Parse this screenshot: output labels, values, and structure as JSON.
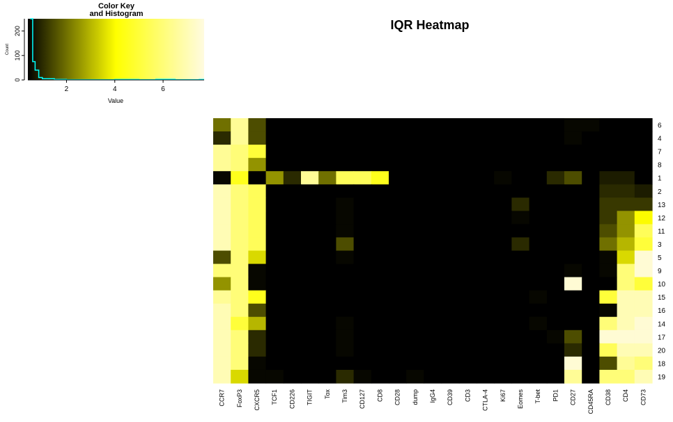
{
  "chart_data": {
    "type": "heatmap",
    "title": "IQR Heatmap",
    "xlabel": "",
    "ylabel": "",
    "columns": [
      "CCR7",
      "FoxP3",
      "CXCR5",
      "TCF1",
      "CD226",
      "TIGIT",
      "Tox",
      "Tim3",
      "CD127",
      "CD8",
      "CD28",
      "dump",
      "IgG4",
      "CD39",
      "CD3",
      "CTLA-4",
      "Ki67",
      "Eomes",
      "T-bet",
      "PD1",
      "CD27",
      "CD45RA",
      "CD38",
      "CD4",
      "CD73"
    ],
    "rows": [
      "6",
      "4",
      "7",
      "8",
      "1",
      "2",
      "13",
      "12",
      "11",
      "3",
      "5",
      "9",
      "10",
      "15",
      "16",
      "14",
      "17",
      "20",
      "18",
      "19"
    ],
    "values": [
      [
        2.0,
        6.5,
        1.5,
        0.1,
        0.1,
        0.1,
        0.1,
        0.3,
        0.1,
        0.1,
        0.1,
        0.3,
        0.1,
        0.1,
        0.1,
        0.1,
        0.1,
        0.1,
        0.1,
        0.2,
        0.5,
        0.5,
        0.2,
        0.1,
        0.1
      ],
      [
        1.0,
        6.5,
        1.5,
        0.1,
        0.1,
        0.1,
        0.1,
        0.3,
        0.1,
        0.1,
        0.1,
        0.3,
        0.1,
        0.1,
        0.1,
        0.1,
        0.1,
        0.1,
        0.1,
        0.1,
        0.5,
        0.4,
        0.1,
        0.2,
        0.1
      ],
      [
        6.5,
        6.0,
        5.0,
        0.1,
        0.1,
        0.1,
        0.1,
        0.3,
        0.1,
        0.1,
        0.1,
        0.3,
        0.1,
        0.1,
        0.1,
        0.1,
        0.1,
        0.2,
        0.1,
        0.1,
        0.4,
        0.3,
        0.4,
        0.2,
        0.1
      ],
      [
        6.5,
        6.0,
        2.5,
        0.1,
        0.1,
        0.1,
        0.1,
        0.3,
        0.1,
        0.1,
        0.1,
        0.3,
        0.1,
        0.1,
        0.1,
        0.1,
        0.1,
        0.1,
        0.1,
        0.1,
        0.3,
        0.3,
        0.2,
        0.1,
        0.1
      ],
      [
        0.5,
        4.5,
        0.1,
        2.5,
        1.0,
        6.5,
        2.0,
        5.5,
        5.5,
        4.5,
        0.1,
        0.3,
        0.1,
        0.2,
        0.1,
        0.2,
        0.5,
        0.1,
        0.1,
        1.0,
        1.5,
        0.2,
        0.8,
        0.8,
        0.3
      ],
      [
        7.0,
        6.0,
        5.5,
        0.1,
        0.1,
        0.1,
        0.1,
        0.3,
        0.1,
        0.1,
        0.1,
        0.3,
        0.1,
        0.1,
        0.1,
        0.1,
        0.1,
        0.3,
        0.1,
        0.1,
        0.1,
        0.1,
        1.0,
        1.0,
        0.8
      ],
      [
        7.0,
        6.0,
        5.5,
        0.1,
        0.1,
        0.1,
        0.1,
        0.5,
        0.1,
        0.1,
        0.1,
        0.3,
        0.1,
        0.1,
        0.1,
        0.1,
        0.1,
        1.0,
        0.3,
        0.1,
        0.1,
        0.3,
        1.2,
        1.2,
        1.2
      ],
      [
        7.0,
        6.0,
        5.5,
        0.1,
        0.1,
        0.1,
        0.1,
        0.5,
        0.1,
        0.1,
        0.1,
        0.3,
        0.1,
        0.1,
        0.1,
        0.1,
        0.1,
        0.5,
        0.3,
        0.1,
        0.1,
        0.3,
        1.2,
        2.5,
        4.0
      ],
      [
        7.0,
        6.0,
        5.5,
        0.1,
        0.1,
        0.1,
        0.2,
        0.5,
        0.1,
        0.1,
        0.1,
        0.3,
        0.1,
        0.1,
        0.1,
        0.1,
        0.1,
        0.3,
        0.3,
        0.1,
        0.1,
        0.3,
        1.5,
        2.5,
        5.5
      ],
      [
        7.0,
        6.0,
        5.5,
        0.1,
        0.1,
        0.1,
        0.4,
        1.5,
        0.1,
        0.1,
        0.1,
        0.3,
        0.1,
        0.1,
        0.1,
        0.1,
        0.1,
        1.0,
        0.3,
        0.1,
        0.1,
        0.2,
        2.0,
        3.0,
        5.0
      ],
      [
        1.5,
        6.0,
        3.5,
        0.1,
        0.1,
        0.1,
        0.1,
        0.5,
        0.1,
        0.1,
        0.1,
        0.3,
        0.1,
        0.1,
        0.1,
        0.1,
        0.1,
        0.3,
        0.3,
        0.1,
        0.1,
        0.2,
        0.5,
        3.5,
        7.5
      ],
      [
        6.0,
        6.0,
        0.5,
        0.1,
        0.1,
        0.1,
        0.1,
        0.3,
        0.1,
        0.1,
        0.1,
        0.3,
        0.1,
        0.1,
        0.1,
        0.1,
        0.1,
        0.1,
        0.2,
        0.1,
        0.5,
        0.1,
        0.5,
        6.0,
        7.5
      ],
      [
        2.5,
        6.0,
        0.5,
        0.1,
        0.1,
        0.1,
        0.1,
        0.3,
        0.1,
        0.1,
        0.1,
        0.3,
        0.1,
        0.1,
        0.1,
        0.1,
        0.1,
        0.1,
        0.2,
        0.1,
        7.5,
        0.1,
        0.3,
        6.0,
        5.0
      ],
      [
        6.5,
        6.0,
        4.5,
        0.1,
        0.1,
        0.1,
        0.1,
        0.3,
        0.1,
        0.1,
        0.1,
        0.3,
        0.1,
        0.1,
        0.1,
        0.1,
        0.1,
        0.1,
        0.5,
        0.1,
        0.1,
        0.1,
        5.0,
        7.0,
        7.0
      ],
      [
        7.0,
        6.0,
        1.5,
        0.1,
        0.1,
        0.1,
        0.1,
        0.3,
        0.1,
        0.1,
        0.1,
        0.3,
        0.1,
        0.1,
        0.1,
        0.1,
        0.1,
        0.1,
        0.3,
        0.1,
        0.1,
        0.1,
        0.5,
        7.0,
        7.0
      ],
      [
        7.0,
        5.0,
        3.0,
        0.1,
        0.1,
        0.1,
        0.2,
        0.5,
        0.2,
        0.1,
        0.1,
        0.3,
        0.1,
        0.1,
        0.1,
        0.1,
        0.1,
        0.1,
        0.5,
        0.1,
        0.1,
        0.2,
        6.0,
        7.0,
        7.5
      ],
      [
        7.0,
        6.0,
        1.0,
        0.1,
        0.1,
        0.1,
        0.2,
        0.5,
        0.3,
        0.3,
        0.1,
        0.3,
        0.1,
        0.3,
        0.1,
        0.1,
        0.1,
        0.1,
        0.3,
        0.5,
        1.5,
        0.1,
        7.5,
        7.5,
        7.5
      ],
      [
        7.0,
        6.0,
        1.0,
        0.1,
        0.1,
        0.1,
        0.1,
        0.5,
        0.3,
        0.2,
        0.1,
        0.3,
        0.1,
        0.2,
        0.1,
        0.1,
        0.1,
        0.1,
        0.3,
        0.2,
        1.0,
        0.1,
        5.5,
        7.0,
        7.0
      ],
      [
        7.0,
        6.0,
        0.5,
        0.1,
        0.1,
        0.1,
        0.1,
        0.4,
        0.2,
        0.1,
        0.1,
        0.3,
        0.1,
        0.1,
        0.1,
        0.1,
        0.1,
        0.1,
        0.2,
        0.1,
        7.5,
        0.1,
        1.5,
        6.5,
        6.0
      ],
      [
        7.0,
        3.5,
        0.5,
        0.5,
        0.1,
        0.3,
        0.3,
        1.0,
        0.5,
        0.3,
        0.3,
        0.5,
        0.1,
        0.3,
        0.1,
        0.3,
        0.3,
        0.1,
        0.3,
        0.3,
        6.5,
        0.3,
        6.0,
        6.0,
        7.0
      ]
    ],
    "color_key": {
      "title": "Color Key\nand Histogram",
      "xlabel": "Value",
      "ylabel": "Count",
      "xlim": [
        0.4,
        7.7
      ],
      "ylim": [
        0,
        250
      ],
      "xticks": [
        2,
        4,
        6
      ],
      "yticks": [
        0,
        100,
        200
      ],
      "colormap": [
        "#000000",
        "#ffff00",
        "#fffbe0"
      ],
      "histogram_color": "#00ffff",
      "histogram": [
        {
          "x": 0.5,
          "y": 250
        },
        {
          "x": 0.6,
          "y": 75
        },
        {
          "x": 0.7,
          "y": 40
        },
        {
          "x": 0.85,
          "y": 10
        },
        {
          "x": 1.0,
          "y": 5
        },
        {
          "x": 1.5,
          "y": 2
        },
        {
          "x": 2.0,
          "y": 1
        },
        {
          "x": 3.0,
          "y": 1
        },
        {
          "x": 4.0,
          "y": 2
        },
        {
          "x": 5.0,
          "y": 1
        },
        {
          "x": 5.7,
          "y": 3
        },
        {
          "x": 6.5,
          "y": 1
        },
        {
          "x": 7.5,
          "y": 2
        }
      ]
    }
  }
}
